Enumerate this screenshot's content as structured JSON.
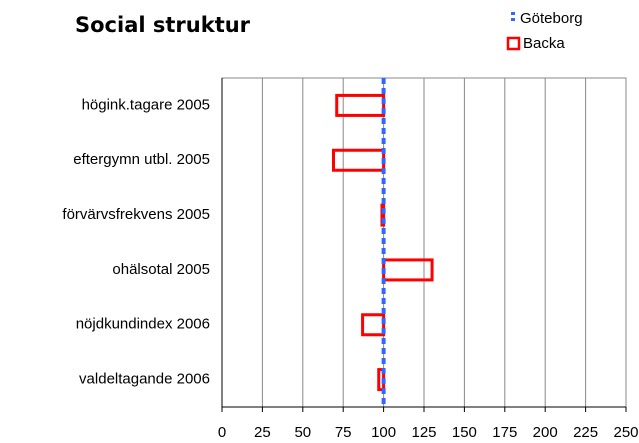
{
  "chart_data": {
    "type": "bar",
    "orientation": "horizontal",
    "title": "Social struktur",
    "categories": [
      "högink.tagare 2005",
      "eftergymn utbl. 2005",
      "förvärvsfrekvens 2005",
      "ohälsotal 2005",
      "nöjdkundindex 2006",
      "valdeltagande 2006"
    ],
    "reference": {
      "name": "Göteborg",
      "value": 100,
      "color": "#3366ff"
    },
    "series": [
      {
        "name": "Backa",
        "color": "#ff0000",
        "values": [
          71,
          69,
          99,
          130,
          87,
          97
        ]
      }
    ],
    "xlim": [
      0,
      250
    ],
    "xticks": [
      0,
      25,
      50,
      75,
      100,
      125,
      150,
      175,
      200,
      225,
      250
    ],
    "grid": true,
    "legend": "top-right"
  }
}
